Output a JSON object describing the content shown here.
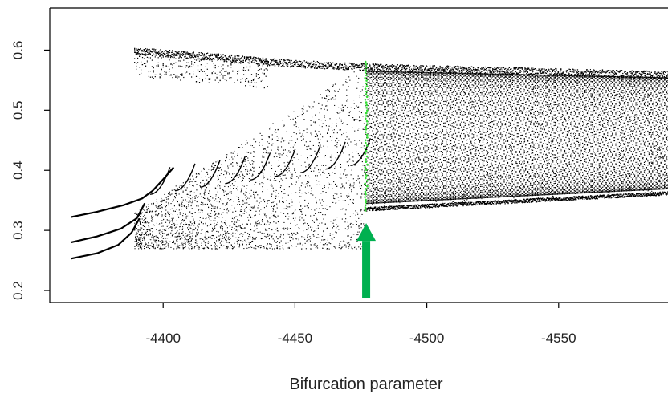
{
  "chart_data": {
    "type": "scatter",
    "title": "",
    "xlabel": "Bifurcation parameter",
    "ylabel": "",
    "xlim": [
      -4357,
      -4593
    ],
    "ylim": [
      0.18,
      0.67
    ],
    "x_axis_reversed": true,
    "x_ticks": [
      -4400,
      -4450,
      -4500,
      -4550
    ],
    "x_tick_labels": [
      "-4400",
      "-4450",
      "-4500",
      "-4550"
    ],
    "y_ticks": [
      0.2,
      0.3,
      0.4,
      0.5,
      0.6
    ],
    "y_tick_labels": [
      "0.2",
      "0.3",
      "0.4",
      "0.5",
      "0.6"
    ],
    "grid": false,
    "legend": "none",
    "series": [
      {
        "kind": "periodic_branches",
        "color": "#000000",
        "branches": [
          {
            "x": [
              -4365,
              -4375,
              -4385,
              -4392,
              -4396,
              -4400,
              -4404
            ],
            "y": [
              0.322,
              0.331,
              0.342,
              0.353,
              0.366,
              0.385,
              0.405
            ]
          },
          {
            "x": [
              -4365,
              -4375,
              -4384,
              -4390,
              -4393
            ],
            "y": [
              0.28,
              0.29,
              0.303,
              0.32,
              0.345
            ]
          },
          {
            "x": [
              -4365,
              -4375,
              -4383,
              -4388,
              -4391
            ],
            "y": [
              0.253,
              0.262,
              0.276,
              0.296,
              0.32
            ]
          }
        ]
      },
      {
        "kind": "quasi_periodic_band",
        "color": "#000000",
        "x_range": [
          -4389,
          -4593
        ],
        "upper_boundary": {
          "x": [
            -4389,
            -4420,
            -4445,
            -4477,
            -4593
          ],
          "y": [
            0.605,
            0.595,
            0.585,
            0.578,
            0.565
          ]
        },
        "lower_boundary": {
          "x": [
            -4477,
            -4593
          ],
          "y": [
            0.333,
            0.36
          ]
        }
      },
      {
        "kind": "chaotic_scatter",
        "color": "#000000",
        "x_range": [
          -4389,
          -4477
        ],
        "y_range": [
          0.27,
          0.45
        ]
      },
      {
        "kind": "highlighted_section",
        "color": "#33dd33",
        "x": -4477,
        "y_range": [
          0.333,
          0.582
        ]
      }
    ],
    "annotations": [
      {
        "kind": "arrow",
        "color": "#00b050",
        "direction": "up",
        "x": -4477,
        "from_y": 0.188,
        "to_y": 0.312
      }
    ]
  }
}
